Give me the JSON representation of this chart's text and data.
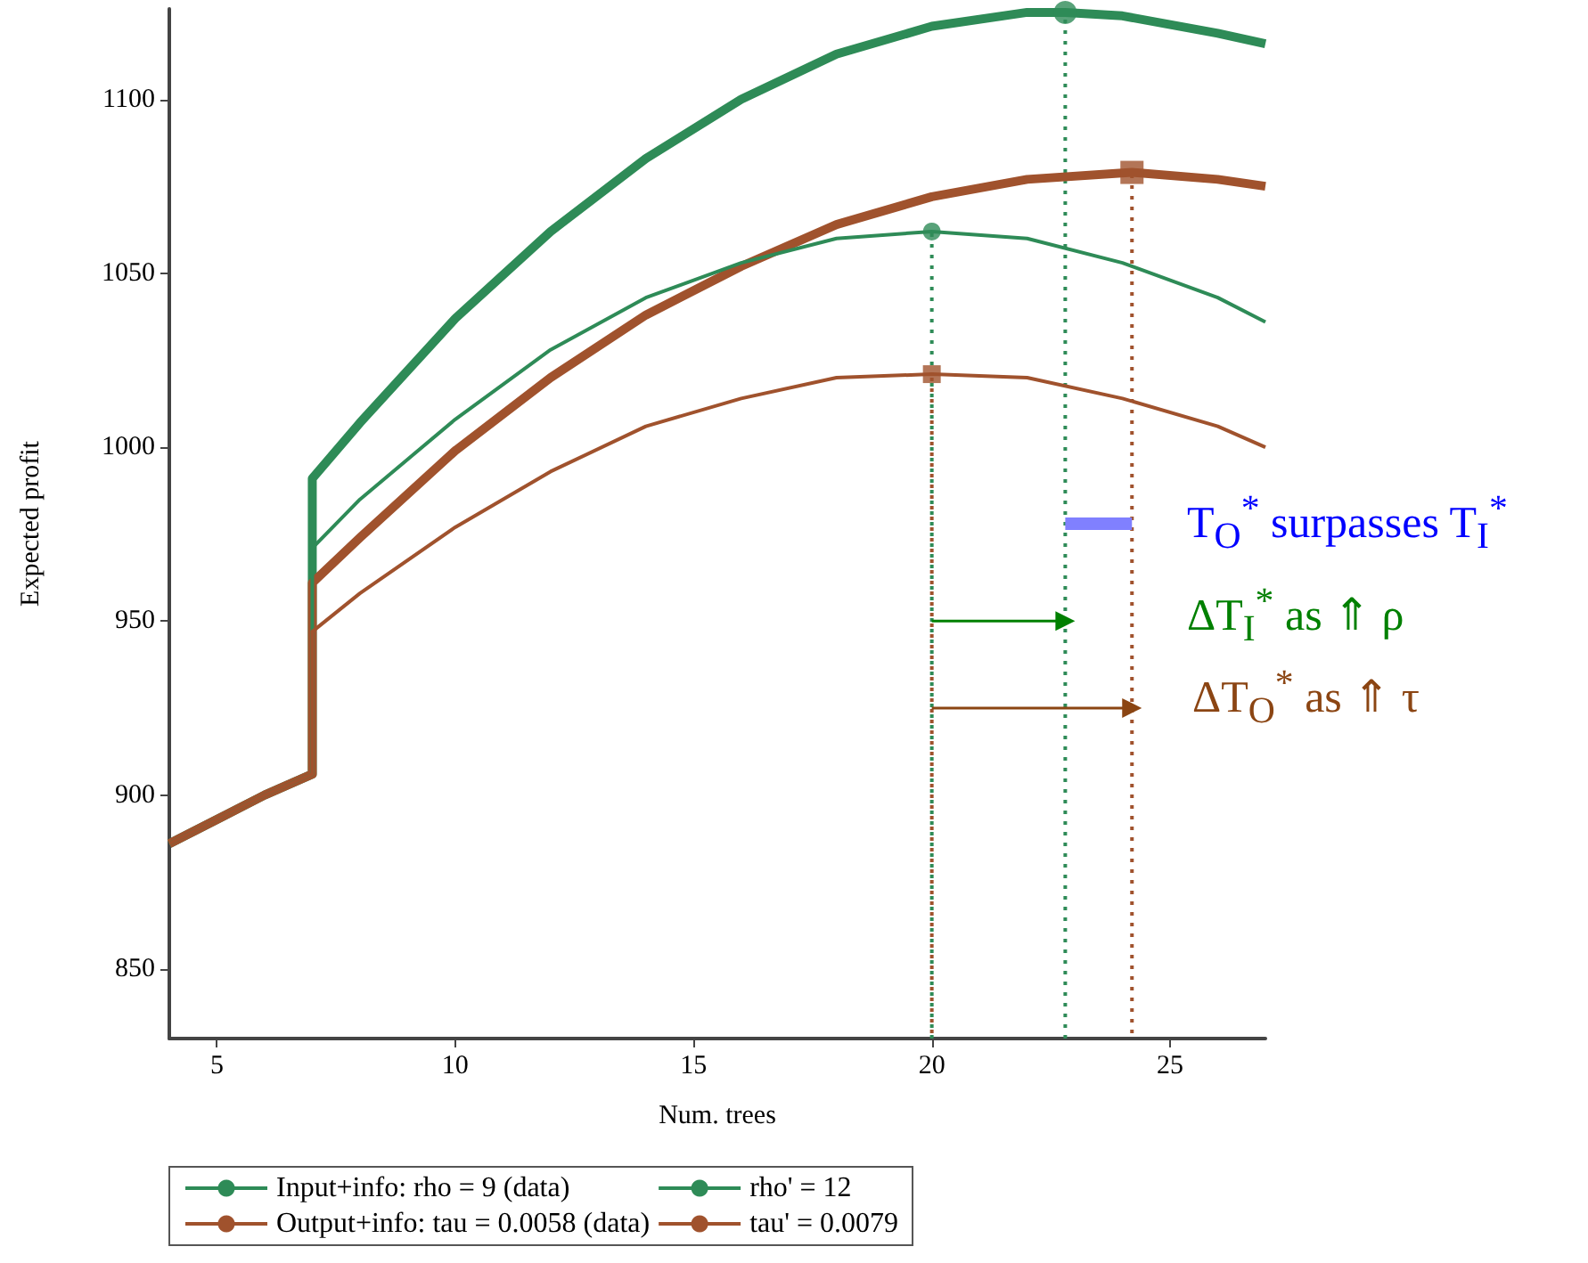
{
  "chart_data": {
    "type": "line",
    "xlabel": "Num. trees",
    "ylabel": "Expected profit",
    "x": [
      4,
      5,
      6,
      7,
      7,
      8,
      10,
      12,
      14,
      16,
      18,
      20,
      22,
      24,
      26,
      27
    ],
    "series": [
      {
        "name": "Input+info: rho = 9 (data)",
        "color": "#2e8b57",
        "values": [
          886,
          893,
          900,
          906,
          971,
          985,
          1008,
          1028,
          1043,
          1053,
          1060,
          1062,
          1060,
          1053,
          1043,
          1036
        ]
      },
      {
        "name": "Output+info: tau = 0.0058 (data)",
        "color": "#a0522d",
        "values": [
          886,
          893,
          900,
          906,
          947,
          958,
          977,
          993,
          1006,
          1014,
          1020,
          1021,
          1020,
          1014,
          1006,
          1000
        ]
      },
      {
        "name": "rho' = 12",
        "color": "#2e8b57",
        "x": [
          4,
          5,
          6,
          7,
          7,
          8,
          10,
          12,
          14,
          16,
          18,
          20,
          22,
          22.8,
          24,
          26,
          27
        ],
        "values": [
          886,
          893,
          900,
          906,
          991,
          1007,
          1037,
          1062,
          1083,
          1100,
          1113,
          1121,
          1125,
          1125,
          1124,
          1119,
          1116
        ]
      },
      {
        "name": "tau' = 0.0079",
        "color": "#a0522d",
        "x": [
          4,
          5,
          6,
          7,
          7,
          8,
          10,
          12,
          14,
          16,
          18,
          20,
          22,
          24.2,
          26,
          27
        ],
        "values": [
          886,
          893,
          900,
          906,
          961,
          974,
          999,
          1020,
          1038,
          1052,
          1064,
          1072,
          1077,
          1079,
          1077,
          1075
        ]
      },
      {
        "type": "line",
        "color": "#2e8b57",
        "line_style": "dotted",
        "x": [
          20,
          20
        ],
        "values": [
          830,
          1062
        ]
      },
      {
        "type": "line",
        "color": "#a0522d",
        "line_style": "dotted",
        "x": [
          20,
          20
        ],
        "values": [
          830,
          1021
        ]
      },
      {
        "type": "line",
        "color": "#2e8b57",
        "line_style": "dotted",
        "x": [
          22.8,
          22.8
        ],
        "values": [
          830,
          1125
        ]
      },
      {
        "type": "line",
        "color": "#a0522d",
        "line_style": "dotted",
        "x": [
          24.2,
          24.2
        ],
        "values": [
          830,
          1079
        ]
      },
      {
        "type": "scatter",
        "color": "#2e8b57",
        "marker": "circle",
        "x": [
          20,
          22.8
        ],
        "values": [
          1062,
          1125
        ]
      },
      {
        "type": "scatter",
        "color": "#a0522d",
        "marker": "square",
        "x": [
          20,
          24.2
        ],
        "values": [
          1021,
          1079
        ]
      },
      {
        "type": "line",
        "color": "#8080ff",
        "x": [
          22.8,
          24.2
        ],
        "values": [
          978,
          978
        ]
      },
      {
        "type": "line",
        "color": "#008000",
        "marker": "triangle",
        "x": [
          20,
          22.8
        ],
        "values": [
          950,
          950
        ]
      },
      {
        "type": "line",
        "color": "#8b4513",
        "marker": "triangle",
        "x": [
          20,
          24.2
        ],
        "values": [
          925,
          925
        ]
      }
    ],
    "annotations": [
      "T$_{O}$$^{*}$ surpasses T$_{I}$$^{*}$",
      "ΔT$_{I}$$^{*}$ as ⇑ ρ",
      "ΔT$_{O}$$^{*}$ as ⇑ τ"
    ],
    "xlim": [
      4,
      27
    ],
    "xticks": [
      5,
      10,
      15,
      20,
      25
    ],
    "ylim": [
      830,
      1126
    ],
    "yticks": [
      850,
      900,
      950,
      1000,
      1050,
      1100
    ],
    "legend": "bottom",
    "grid": false
  }
}
